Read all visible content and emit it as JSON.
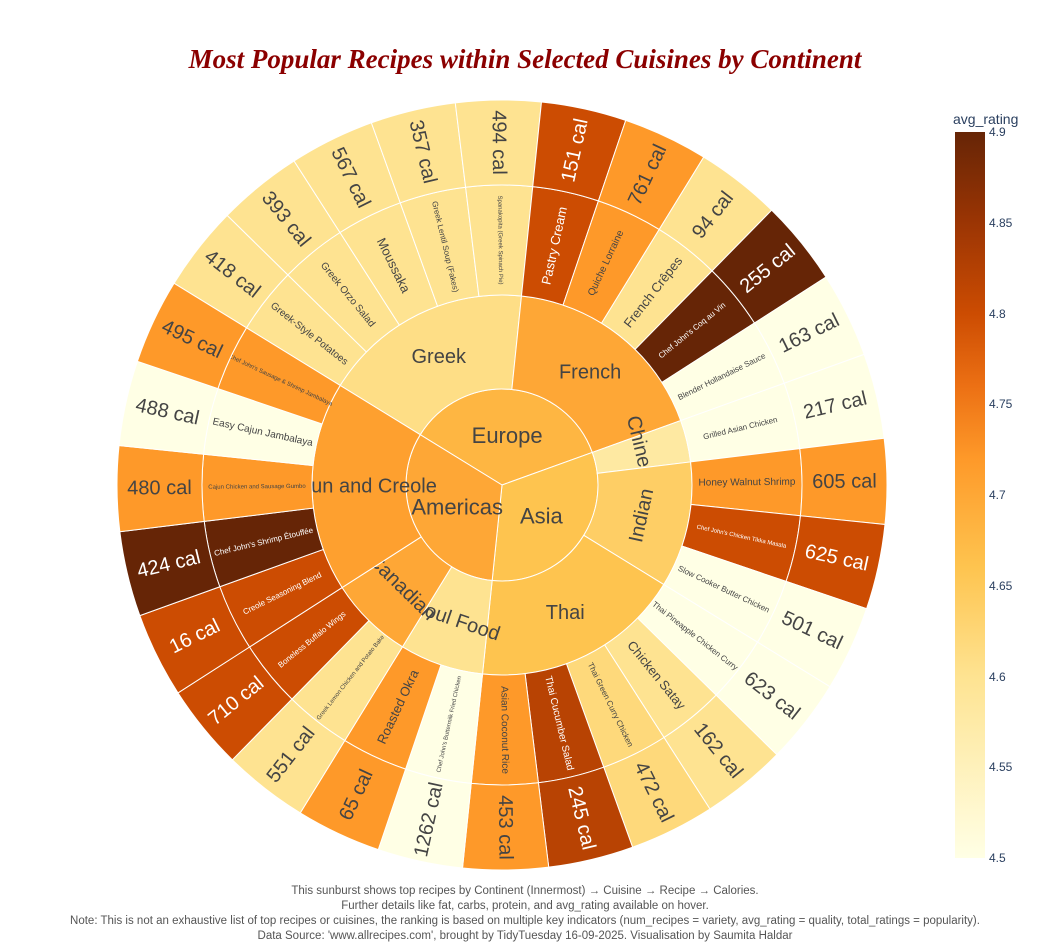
{
  "title": "Most Popular Recipes within Selected Cuisines by Continent",
  "colorbar": {
    "title": "avg_rating",
    "ticks": [
      "4.9",
      "4.85",
      "4.8",
      "4.75",
      "4.7",
      "4.65",
      "4.6",
      "4.55",
      "4.5"
    ],
    "min": 4.5,
    "max": 4.9
  },
  "footer": [
    "This sunburst shows top recipes by Continent (Innermost) → Cuisine → Recipe → Calories.",
    "Further details like fat, carbs, protein, and avg_rating available on hover.",
    "Note: This is not an exhaustive list of top recipes or cuisines, the ranking is based on multiple key indicators (num_recipes = variety, avg_rating = quality, total_ratings = popularity).",
    "Data Source: 'www.allrecipes.com', brought by TidyTuesday 16-09-2025. Visualisation by Saumita Haldar"
  ],
  "chart_data": {
    "type": "sunburst",
    "hierarchy": "Continent > Cuisine > Recipe > Calories",
    "color_metric": "avg_rating",
    "continents": [
      {
        "name": "Europe",
        "rating": 4.68,
        "cuisines": [
          {
            "name": "Greek",
            "rating": 4.61,
            "recipes": [
              {
                "name": "Greek-Style Potatoes",
                "calories": "418 cal",
                "rating": 4.6
              },
              {
                "name": "Greek Orzo Salad",
                "calories": "393 cal",
                "rating": 4.6
              },
              {
                "name": "Moussaka",
                "calories": "567 cal",
                "rating": 4.6
              },
              {
                "name": "Greek Lentil Soup (Fakes)",
                "calories": "357 cal",
                "rating": 4.6
              },
              {
                "name": "Spanakopita (Greek Spinach Pie)",
                "calories": "494 cal",
                "rating": 4.6
              }
            ]
          },
          {
            "name": "French",
            "rating": 4.7,
            "recipes": [
              {
                "name": "Pastry Cream",
                "calories": "151 cal",
                "rating": 4.8
              },
              {
                "name": "Quiche Lorraine",
                "calories": "761 cal",
                "rating": 4.72
              },
              {
                "name": "French Crêpes",
                "calories": "94 cal",
                "rating": 4.6
              },
              {
                "name": "Chef John's Coq au Vin",
                "calories": "255 cal",
                "rating": 4.9
              },
              {
                "name": "Blender Hollandaise Sauce",
                "calories": "163 cal",
                "rating": 4.5
              }
            ]
          }
        ]
      },
      {
        "name": "Asia",
        "rating": 4.66,
        "cuisines": [
          {
            "name": "Chinese",
            "rating": 4.58,
            "recipes": [
              {
                "name": "Grilled Asian Chicken",
                "calories": "217 cal",
                "rating": 4.5
              }
            ]
          },
          {
            "name": "Indian",
            "rating": 4.64,
            "recipes": [
              {
                "name": "Honey Walnut Shrimp",
                "calories": "605 cal",
                "rating": 4.72
              },
              {
                "name": "Chef John's Chicken Tikka Masala",
                "calories": "625 cal",
                "rating": 4.8
              },
              {
                "name": "Slow Cooker Butter Chicken",
                "calories": "501 cal",
                "rating": 4.5
              }
            ]
          },
          {
            "name": "Thai",
            "rating": 4.66,
            "recipes": [
              {
                "name": "Thai Pineapple Chicken Curry",
                "calories": "623 cal",
                "rating": 4.5
              },
              {
                "name": "Chicken Satay",
                "calories": "162 cal",
                "rating": 4.6
              },
              {
                "name": "Thai Green Curry Chicken",
                "calories": "472 cal",
                "rating": 4.62
              },
              {
                "name": "Thai Cucumber Salad",
                "calories": "245 cal",
                "rating": 4.82
              },
              {
                "name": "Asian Coconut Rice",
                "calories": "453 cal",
                "rating": 4.72
              }
            ]
          }
        ]
      },
      {
        "name": "Americas",
        "rating": 4.7,
        "cuisines": [
          {
            "name": "Soul Food",
            "rating": 4.6,
            "recipes": [
              {
                "name": "Chef John's Buttermilk Fried Chicken",
                "calories": "1262 cal",
                "rating": 4.5
              },
              {
                "name": "Roasted Okra",
                "calories": "65 cal",
                "rating": 4.72
              }
            ]
          },
          {
            "name": "Canadian",
            "rating": 4.7,
            "recipes": [
              {
                "name": "Greek Lemon Chicken and Potato Bake",
                "calories": "551 cal",
                "rating": 4.6
              },
              {
                "name": "Boneless Buffalo Wings",
                "calories": "710 cal",
                "rating": 4.8
              }
            ]
          },
          {
            "name": "Cajun and Creole",
            "rating": 4.71,
            "recipes": [
              {
                "name": "Creole Seasoning Blend",
                "calories": "16 cal",
                "rating": 4.8
              },
              {
                "name": "Chef John's Shrimp Étouffée",
                "calories": "424 cal",
                "rating": 4.9
              },
              {
                "name": "Cajun Chicken and Sausage Gumbo",
                "calories": "480 cal",
                "rating": 4.72
              },
              {
                "name": "Easy Cajun Jambalaya",
                "calories": "488 cal",
                "rating": 4.5
              },
              {
                "name": "Chef John's Sausage & Shrimp Jambalaya",
                "calories": "495 cal",
                "rating": 4.72
              }
            ]
          }
        ]
      }
    ]
  }
}
